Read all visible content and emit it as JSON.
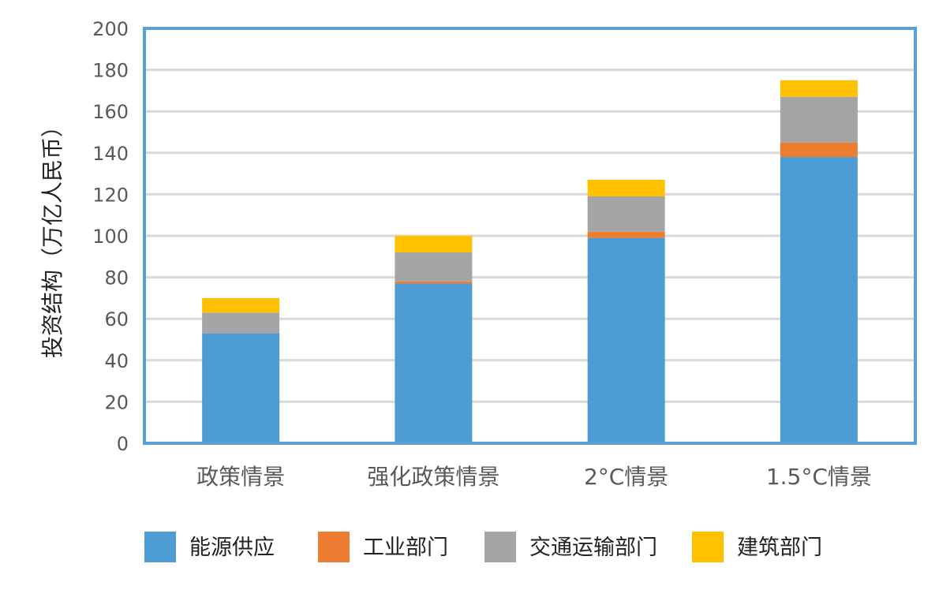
{
  "chart_data": {
    "type": "bar",
    "stacked": true,
    "title": "",
    "xlabel": "",
    "ylabel": "投资结构（万亿人民币）",
    "ylim": [
      0,
      200
    ],
    "yticks": [
      0,
      20,
      40,
      60,
      80,
      100,
      120,
      140,
      160,
      180,
      200
    ],
    "grid": true,
    "legend_position": "bottom",
    "categories": [
      "政策情景",
      "强化政策情景",
      "2°C情景",
      "1.5°C情景"
    ],
    "series": [
      {
        "name": "能源供应",
        "color": "#4e9cd4",
        "values": [
          53,
          77,
          99,
          138
        ]
      },
      {
        "name": "工业部门",
        "color": "#ed7d31",
        "values": [
          0,
          1,
          3,
          7
        ]
      },
      {
        "name": "交通运输部门",
        "color": "#a5a5a5",
        "values": [
          10,
          14,
          17,
          22
        ]
      },
      {
        "name": "建筑部门",
        "color": "#ffc000",
        "values": [
          7,
          8,
          8,
          8
        ]
      }
    ]
  }
}
